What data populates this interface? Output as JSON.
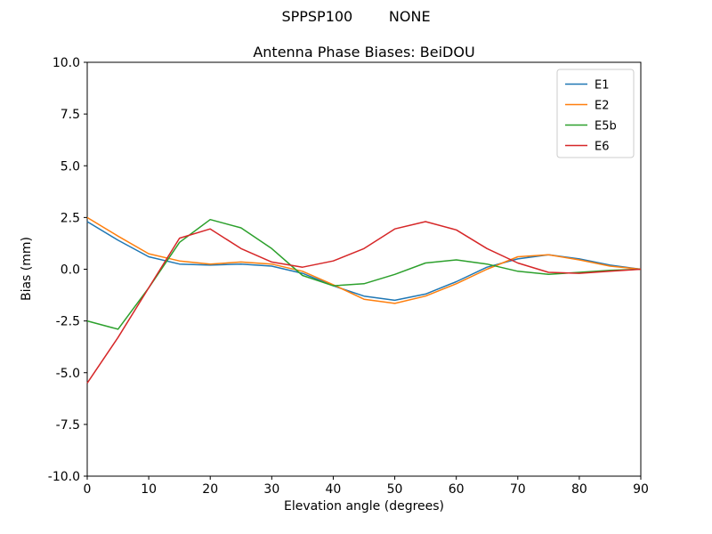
{
  "header": {
    "suptitle": "SPPSP100        NONE"
  },
  "chart_data": {
    "type": "line",
    "title": "Antenna Phase Biases: BeiDOU",
    "xlabel": "Elevation angle (degrees)",
    "ylabel": "Bias (mm)",
    "xlim": [
      0,
      90
    ],
    "ylim": [
      -10,
      10
    ],
    "grid": false,
    "legend_position": "upper right",
    "xticks": [
      0,
      10,
      20,
      30,
      40,
      50,
      60,
      70,
      80,
      90
    ],
    "xtick_labels": [
      "0",
      "10",
      "20",
      "30",
      "40",
      "50",
      "60",
      "70",
      "80",
      "90"
    ],
    "yticks": [
      -10,
      -7.5,
      -5,
      -2.5,
      0,
      2.5,
      5,
      7.5,
      10
    ],
    "ytick_labels": [
      "-10.0",
      "-7.5",
      "-5.0",
      "-2.5",
      "0.0",
      "2.5",
      "5.0",
      "7.5",
      "10.0"
    ],
    "x": [
      0,
      5,
      10,
      15,
      20,
      25,
      30,
      35,
      40,
      45,
      50,
      55,
      60,
      65,
      70,
      75,
      80,
      85,
      90
    ],
    "series": [
      {
        "name": "E1",
        "color": "#1f77b4",
        "values": [
          2.3,
          1.4,
          0.6,
          0.25,
          0.2,
          0.25,
          0.15,
          -0.2,
          -0.8,
          -1.3,
          -1.5,
          -1.2,
          -0.6,
          0.1,
          0.5,
          0.7,
          0.5,
          0.2,
          0.0
        ]
      },
      {
        "name": "E2",
        "color": "#ff7f0e",
        "values": [
          2.5,
          1.6,
          0.75,
          0.4,
          0.25,
          0.35,
          0.25,
          -0.1,
          -0.75,
          -1.45,
          -1.65,
          -1.3,
          -0.7,
          0.0,
          0.6,
          0.7,
          0.45,
          0.15,
          0.0
        ]
      },
      {
        "name": "E5b",
        "color": "#2ca02c",
        "values": [
          -2.5,
          -2.9,
          -0.9,
          1.3,
          2.4,
          2.0,
          1.0,
          -0.3,
          -0.8,
          -0.7,
          -0.25,
          0.3,
          0.45,
          0.25,
          -0.1,
          -0.25,
          -0.15,
          -0.05,
          0.0
        ]
      },
      {
        "name": "E6",
        "color": "#d62728",
        "values": [
          -5.5,
          -3.3,
          -0.9,
          1.5,
          1.95,
          1.0,
          0.35,
          0.1,
          0.4,
          1.0,
          1.95,
          2.3,
          1.9,
          1.0,
          0.3,
          -0.15,
          -0.2,
          -0.1,
          0.0
        ]
      }
    ]
  },
  "style": {
    "axis_color": "#000000",
    "legend_border_color": "#cccccc",
    "legend_bg_color": "#ffffff"
  }
}
